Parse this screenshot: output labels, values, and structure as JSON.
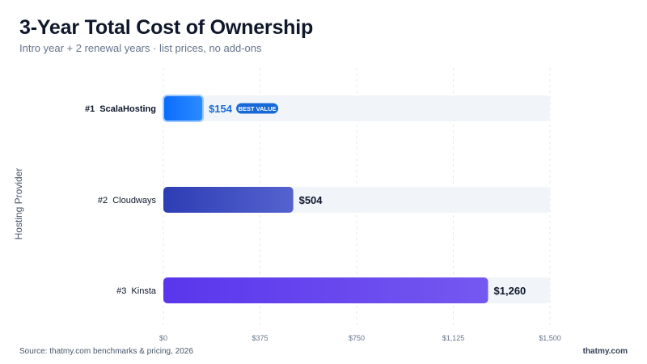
{
  "chart_data": {
    "type": "bar",
    "orientation": "horizontal",
    "title": "3-Year Total Cost of Ownership",
    "subtitle": "Intro year + 2 renewal years · list prices, no add-ons",
    "ylabel": "Hosting Provider",
    "xlim": [
      0,
      1500
    ],
    "xticks": [
      "$0",
      "$375",
      "$750",
      "$1,125",
      "$1,500"
    ],
    "xtick_values": [
      0,
      375,
      750,
      1125,
      1500
    ],
    "grid": true,
    "categories": [
      "#1  ScalaHosting",
      "#2  Cloudways",
      "#3  Kinsta"
    ],
    "values": [
      154,
      504,
      1260
    ],
    "value_labels": [
      "$154",
      "$504",
      "$1,260"
    ],
    "badge": {
      "category_index": 0,
      "text": "BEST VALUE"
    },
    "colors": {
      "bar1_start": "#0a6cff",
      "bar1_end": "#2b8cff",
      "bar2_start": "#2d3db3",
      "bar2_end": "#5563cf",
      "bar3_start": "#5a36ec",
      "bar3_end": "#7558f0",
      "track": "#f1f5f9",
      "highlight_text": "#1769d8",
      "badge_bg": "#1769d8"
    }
  },
  "footer": {
    "source": "Source: thatmy.com benchmarks & pricing, 2026",
    "brand": "thatmy.com"
  }
}
